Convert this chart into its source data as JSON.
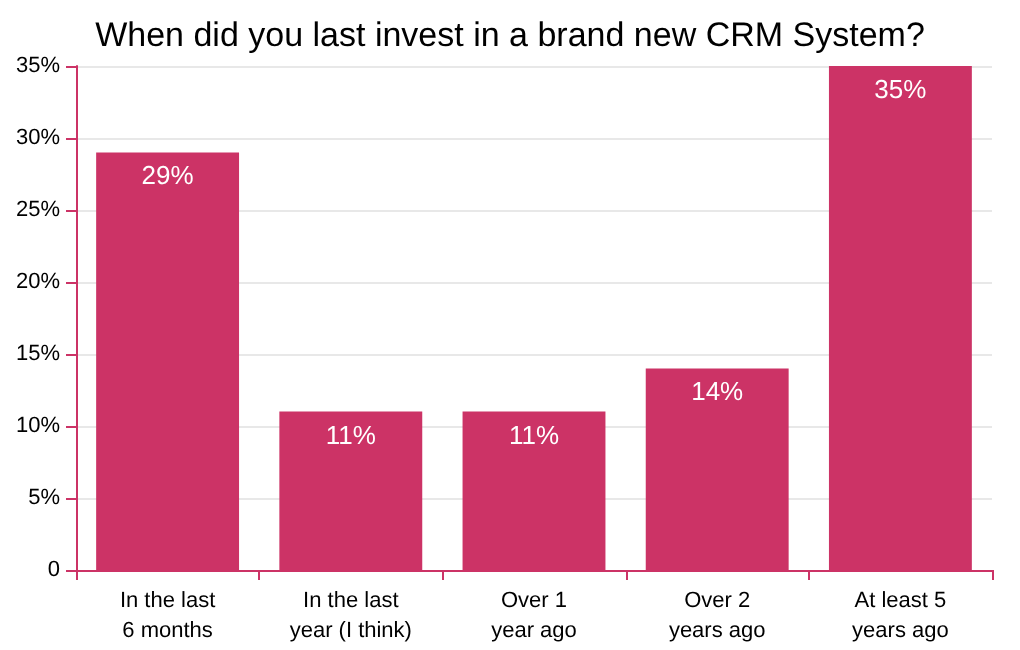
{
  "chart_data": {
    "type": "bar",
    "title": "When did you last invest in a brand new CRM System?",
    "categories": [
      "In the last\n6 months",
      "In the last\nyear (I think)",
      "Over 1\nyear ago",
      "Over 2\nyears ago",
      "At least 5\nyears ago"
    ],
    "values": [
      29,
      11,
      11,
      14,
      35
    ],
    "color": "#cc3366",
    "value_labels": [
      "29%",
      "11%",
      "11%",
      "14%",
      "35%"
    ],
    "ylim": [
      0,
      35
    ],
    "yticks": [
      0,
      {
        "value": 5,
        "label": "5%"
      },
      {
        "value": 10,
        "label": "10%"
      },
      {
        "value": 15,
        "label": "15%"
      },
      {
        "value": 20,
        "label": "20%"
      },
      {
        "value": 25,
        "label": "25%"
      },
      {
        "value": 30,
        "label": "30%"
      },
      {
        "value": 35,
        "label": "35%"
      }
    ],
    "grid": "y"
  }
}
